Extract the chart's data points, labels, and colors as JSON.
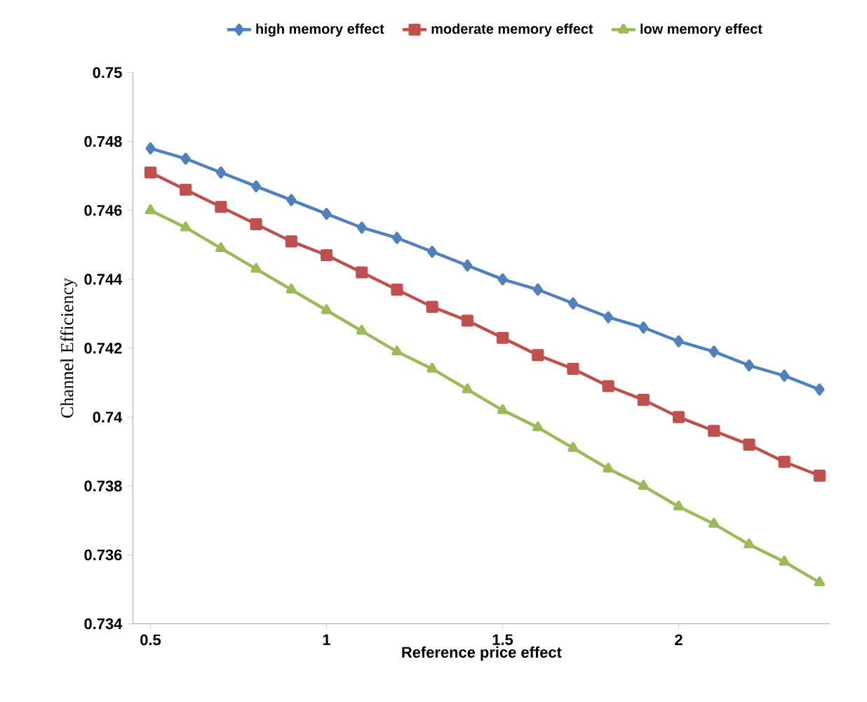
{
  "chart_data": {
    "type": "line",
    "xlabel": "Reference price effect",
    "ylabel": "Channel Efficiency",
    "x": [
      0.5,
      0.6,
      0.7,
      0.8,
      0.9,
      1.0,
      1.1,
      1.2,
      1.3,
      1.4,
      1.5,
      1.6,
      1.7,
      1.8,
      1.9,
      2.0,
      2.1,
      2.2,
      2.3,
      2.4
    ],
    "xlim": [
      0.45,
      2.43
    ],
    "xticks": [
      0.5,
      1,
      1.5,
      2
    ],
    "ylim": [
      0.734,
      0.75
    ],
    "yticks": [
      0.734,
      0.736,
      0.738,
      0.74,
      0.742,
      0.744,
      0.746,
      0.748,
      0.75
    ],
    "legend": "top",
    "series": [
      {
        "name": "high memory effect",
        "color": "#4f81bd",
        "marker": "diamond",
        "values": [
          0.7478,
          0.7475,
          0.7471,
          0.7467,
          0.7463,
          0.7459,
          0.7455,
          0.7452,
          0.7448,
          0.7444,
          0.744,
          0.7437,
          0.7433,
          0.7429,
          0.7426,
          0.7422,
          0.7419,
          0.7415,
          0.7412,
          0.7408
        ]
      },
      {
        "name": "moderate memory effect",
        "color": "#c0504d",
        "marker": "square",
        "values": [
          0.7471,
          0.7466,
          0.7461,
          0.7456,
          0.7451,
          0.7447,
          0.7442,
          0.7437,
          0.7432,
          0.7428,
          0.7423,
          0.7418,
          0.7414,
          0.7409,
          0.7405,
          0.74,
          0.7396,
          0.7392,
          0.7387,
          0.7383
        ]
      },
      {
        "name": "low memory effect",
        "color": "#9bbb59",
        "marker": "triangle",
        "values": [
          0.746,
          0.7455,
          0.7449,
          0.7443,
          0.7437,
          0.7431,
          0.7425,
          0.7419,
          0.7414,
          0.7408,
          0.7402,
          0.7397,
          0.7391,
          0.7385,
          0.738,
          0.7374,
          0.7369,
          0.7363,
          0.7358,
          0.7352
        ]
      }
    ]
  }
}
